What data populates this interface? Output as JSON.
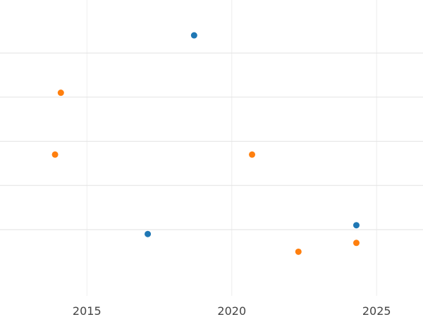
{
  "chart_data": {
    "type": "scatter",
    "title": "",
    "xlabel": "",
    "ylabel": "",
    "x_ticks": [
      2015,
      2020,
      2025
    ],
    "x_tick_labels": [
      "2015",
      "2020",
      "2025"
    ],
    "xlim": [
      2012.0,
      2026.6
    ],
    "grid": true,
    "legend": "none",
    "series": [
      {
        "color": "#1f77b4",
        "points": [
          {
            "x": 2017.1,
            "y": 0.9
          },
          {
            "x": 2018.7,
            "y": 5.4
          },
          {
            "x": 2024.3,
            "y": 1.1
          }
        ]
      },
      {
        "color": "#ff7f0e",
        "points": [
          {
            "x": 2013.9,
            "y": 2.7
          },
          {
            "x": 2014.1,
            "y": 4.1
          },
          {
            "x": 2020.7,
            "y": 2.7
          },
          {
            "x": 2022.3,
            "y": 0.5
          },
          {
            "x": 2024.3,
            "y": 0.7
          }
        ]
      }
    ],
    "y_gridlines": [
      1,
      2,
      3,
      4,
      5
    ],
    "ylim": [
      -0.5,
      6.2
    ]
  }
}
